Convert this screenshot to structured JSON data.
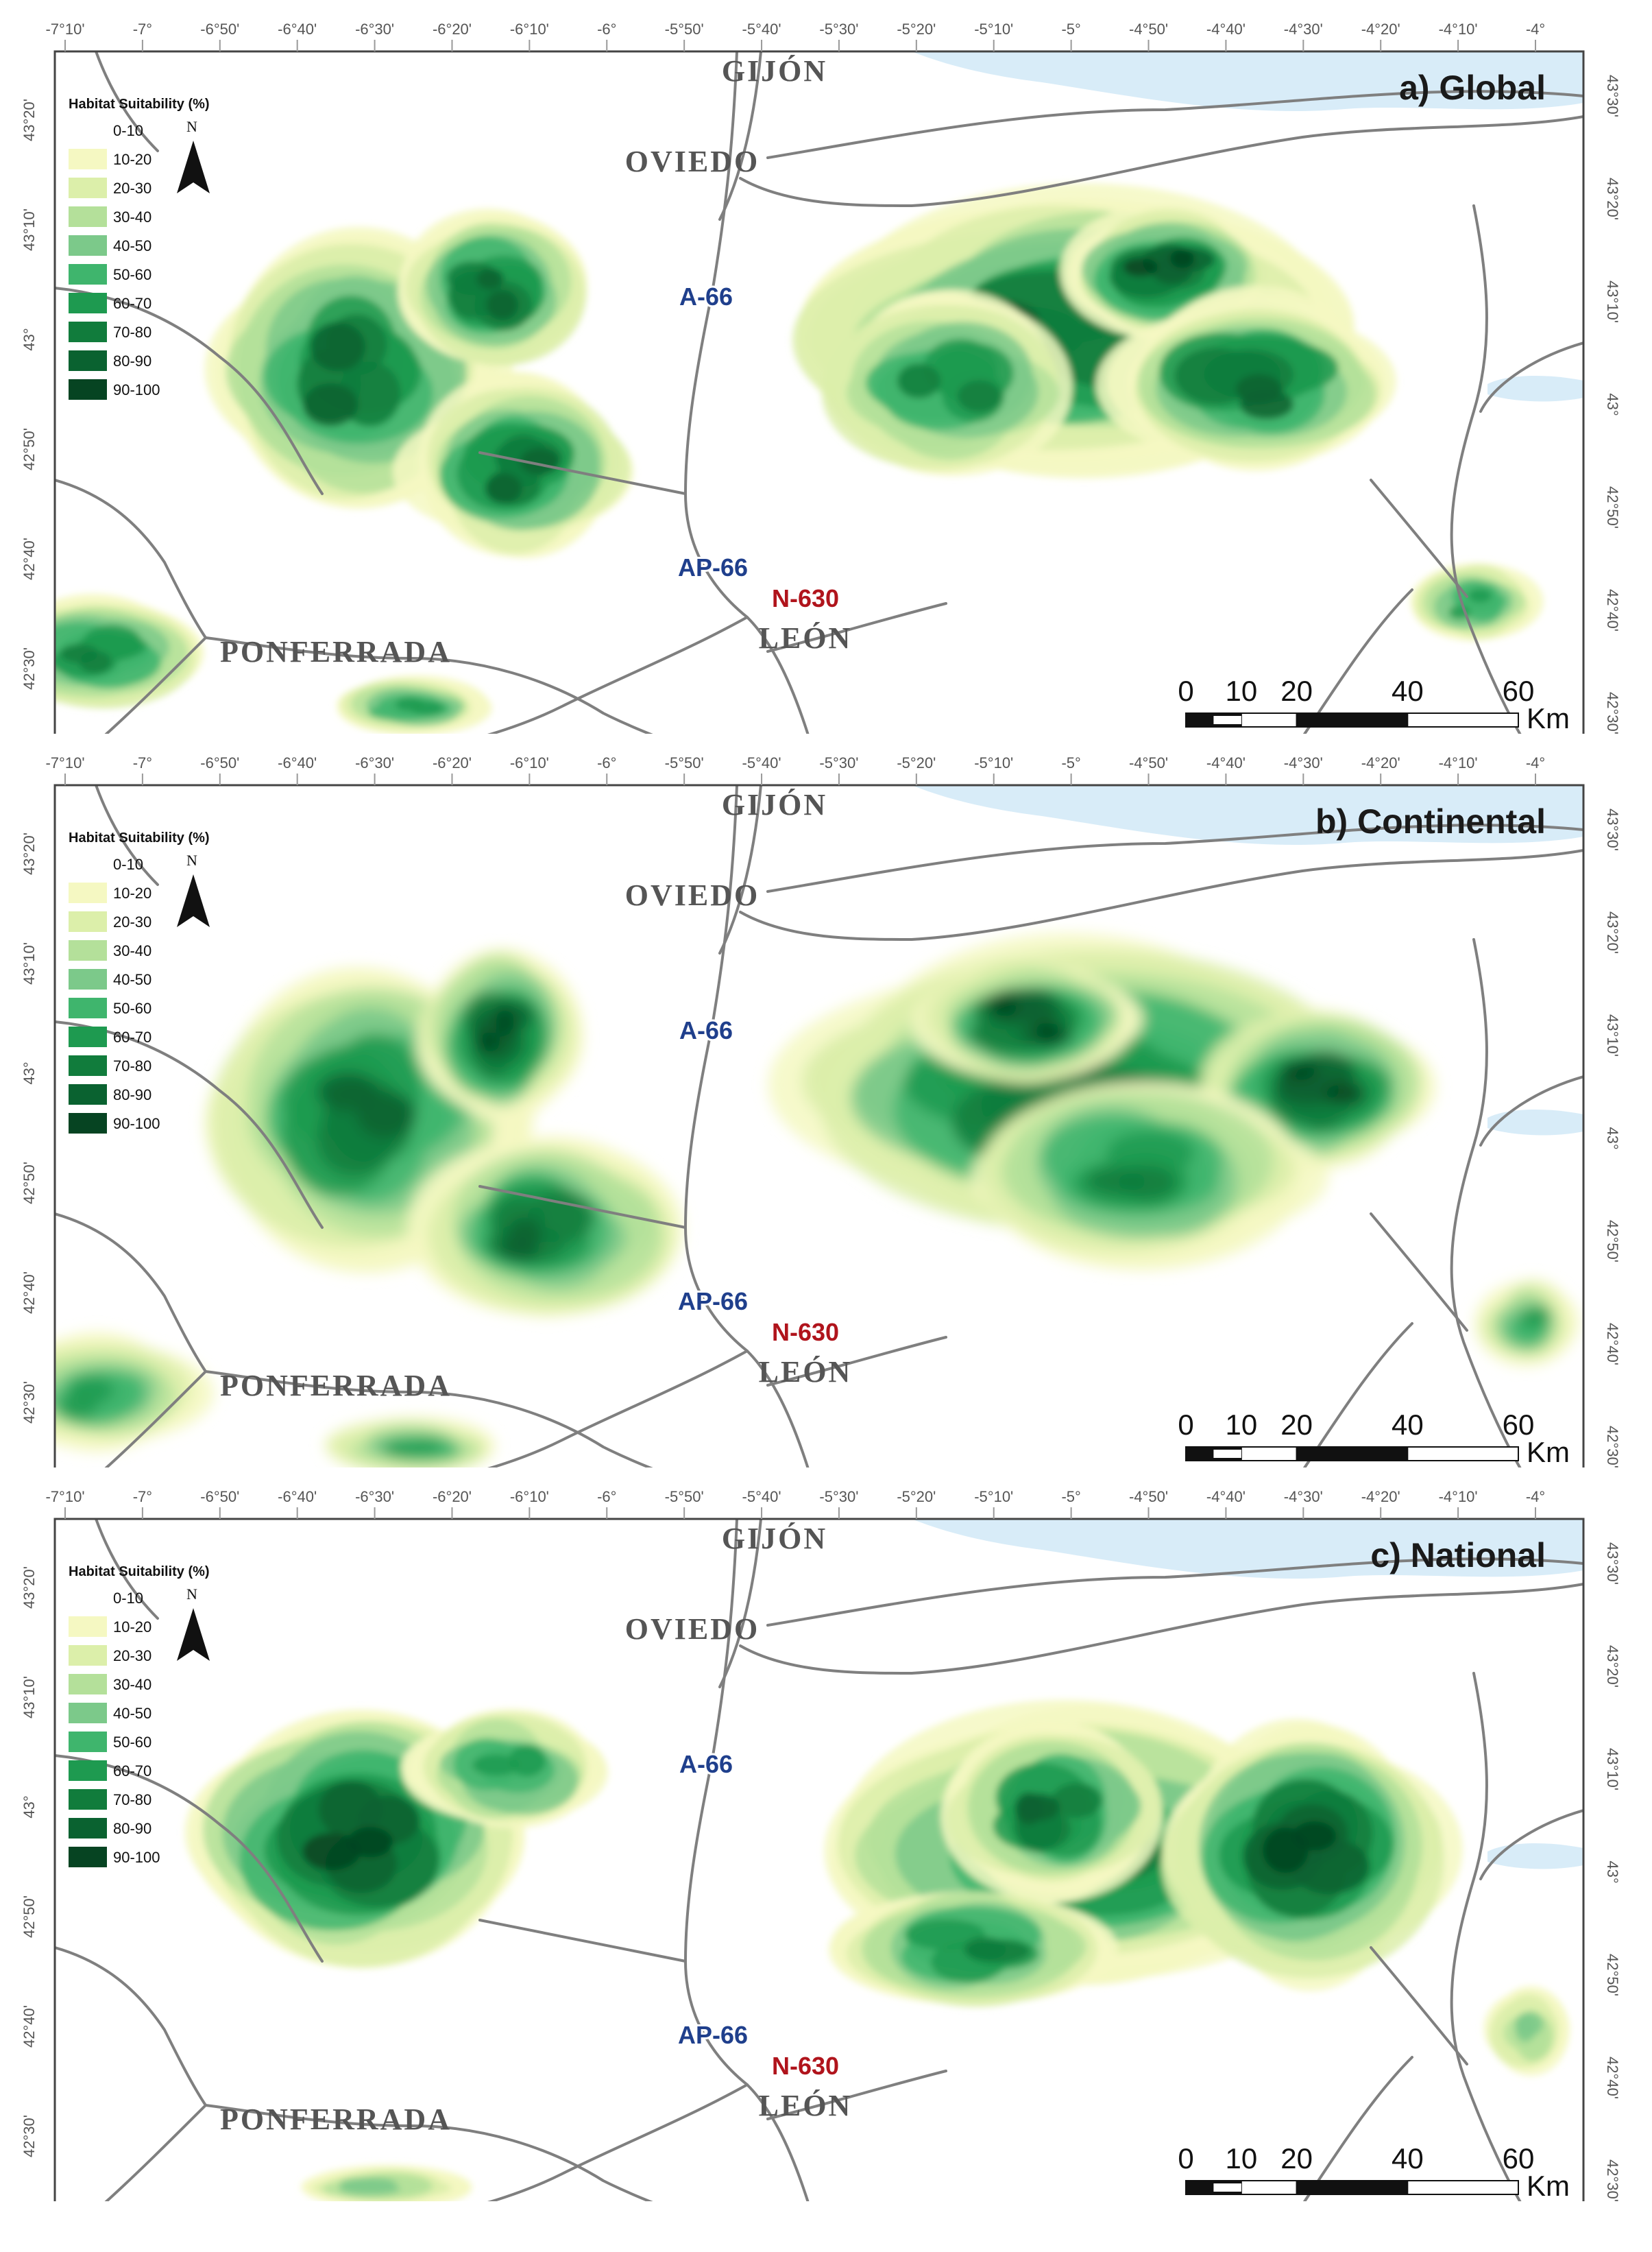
{
  "panels": [
    {
      "title": "a) Global",
      "pattern": "global"
    },
    {
      "title": "b) Continental",
      "pattern": "continental"
    },
    {
      "title": "c) National",
      "pattern": "national"
    }
  ],
  "legend": {
    "title": "Habitat Suitability (%)",
    "classes": [
      {
        "label": "0-10",
        "color": "#ffffff"
      },
      {
        "label": "10-20",
        "color": "#f5f8c2"
      },
      {
        "label": "20-30",
        "color": "#dcefaa"
      },
      {
        "label": "30-40",
        "color": "#b4e09a"
      },
      {
        "label": "40-50",
        "color": "#7cc98a"
      },
      {
        "label": "50-60",
        "color": "#3fb56d"
      },
      {
        "label": "60-70",
        "color": "#1e9a50"
      },
      {
        "label": "70-80",
        "color": "#117c3c"
      },
      {
        "label": "80-90",
        "color": "#0a6230"
      },
      {
        "label": "90-100",
        "color": "#064422"
      }
    ]
  },
  "north_arrow": {
    "label": "N"
  },
  "cities": [
    "GIJÓN",
    "OVIEDO",
    "PONFERRADA",
    "LEÓN"
  ],
  "roads": {
    "a66": "A-66",
    "ap66": "AP-66",
    "n630": "N-630"
  },
  "scale_bar": {
    "labels": [
      "0",
      "10",
      "20",
      "40",
      "60"
    ],
    "unit": "Km"
  },
  "longitudes": [
    "-7°10'",
    "-7°",
    "-6°50'",
    "-6°40'",
    "-6°30'",
    "-6°20'",
    "-6°10'",
    "-6°",
    "-5°50'",
    "-5°40'",
    "-5°30'",
    "-5°20'",
    "-5°10'",
    "-5°",
    "-4°50'",
    "-4°40'",
    "-4°30'",
    "-4°20'",
    "-4°10'",
    "-4°"
  ],
  "latitudes_left": [
    "42°30'",
    "42°40'",
    "42°50'",
    "43°",
    "43°10'",
    "43°20'"
  ],
  "latitudes_right": [
    "42°30'",
    "42°40'",
    "42°50'",
    "43°",
    "43°10'",
    "43°20'",
    "43°30'"
  ],
  "colors": {
    "sea": "#d8ecf8",
    "roads": "#7f7f7f",
    "frame": "#444444"
  }
}
